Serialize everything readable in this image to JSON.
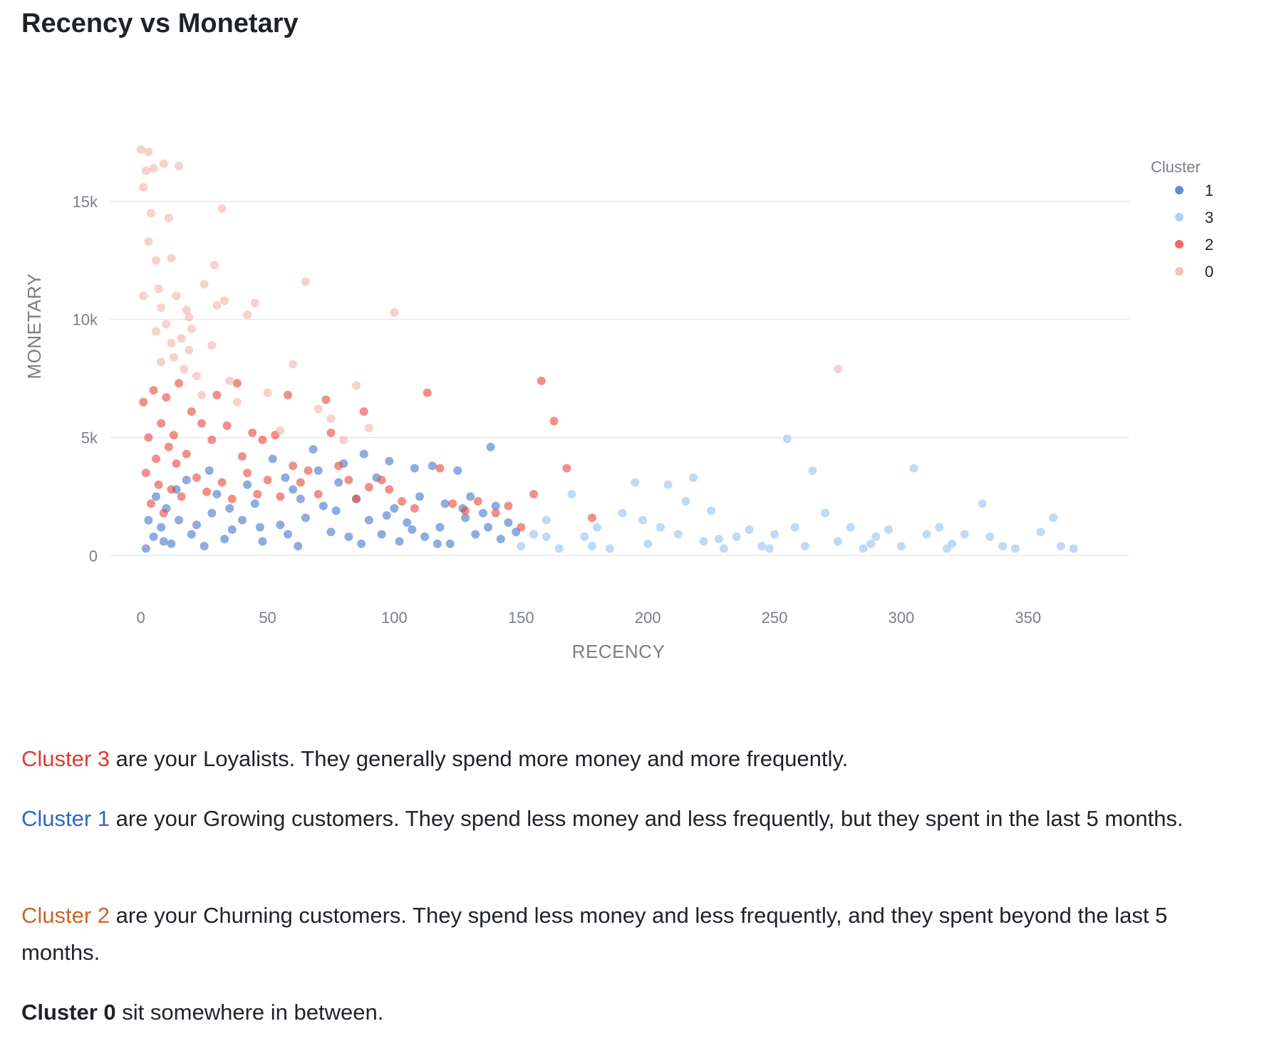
{
  "title": "Recency vs Monetary",
  "chart_data": {
    "type": "scatter",
    "xlabel": "RECENCY",
    "ylabel": "MONETARY",
    "xlim": [
      -12,
      390
    ],
    "ylim": [
      -1500,
      17500
    ],
    "x_ticks": [
      0,
      50,
      100,
      150,
      200,
      250,
      300,
      350
    ],
    "x_tick_labels": [
      "0",
      "50",
      "100",
      "150",
      "200",
      "250",
      "300",
      "350"
    ],
    "y_ticks": [
      0,
      5000,
      10000,
      15000
    ],
    "y_tick_labels": [
      "0",
      "5k",
      "10k",
      "15k"
    ],
    "grid": "horizontal",
    "legend_title": "Cluster",
    "legend_position": "top-right",
    "series": [
      {
        "name": "1",
        "color": "#2f67c4",
        "opacity": 0.55,
        "points": [
          [
            2,
            300
          ],
          [
            5,
            800
          ],
          [
            8,
            1200
          ],
          [
            10,
            2000
          ],
          [
            12,
            500
          ],
          [
            15,
            1500
          ],
          [
            18,
            3200
          ],
          [
            20,
            900
          ],
          [
            25,
            400
          ],
          [
            28,
            1800
          ],
          [
            30,
            2600
          ],
          [
            33,
            700
          ],
          [
            36,
            1100
          ],
          [
            40,
            1500
          ],
          [
            42,
            3000
          ],
          [
            45,
            2200
          ],
          [
            48,
            600
          ],
          [
            52,
            4100
          ],
          [
            55,
            1300
          ],
          [
            58,
            900
          ],
          [
            60,
            2800
          ],
          [
            62,
            400
          ],
          [
            65,
            1600
          ],
          [
            68,
            4500
          ],
          [
            70,
            3600
          ],
          [
            72,
            2100
          ],
          [
            75,
            1000
          ],
          [
            78,
            3100
          ],
          [
            80,
            3900
          ],
          [
            82,
            800
          ],
          [
            85,
            2400
          ],
          [
            88,
            4300
          ],
          [
            90,
            1500
          ],
          [
            93,
            3300
          ],
          [
            95,
            900
          ],
          [
            98,
            4000
          ],
          [
            100,
            2000
          ],
          [
            102,
            600
          ],
          [
            105,
            1400
          ],
          [
            108,
            3700
          ],
          [
            110,
            2500
          ],
          [
            112,
            800
          ],
          [
            115,
            3800
          ],
          [
            118,
            1200
          ],
          [
            120,
            2200
          ],
          [
            122,
            500
          ],
          [
            125,
            3600
          ],
          [
            128,
            1600
          ],
          [
            130,
            2500
          ],
          [
            132,
            900
          ],
          [
            135,
            1800
          ],
          [
            138,
            4600
          ],
          [
            140,
            2100
          ],
          [
            142,
            700
          ],
          [
            145,
            1400
          ],
          [
            148,
            1000
          ],
          [
            3,
            1500
          ],
          [
            6,
            2500
          ],
          [
            9,
            600
          ],
          [
            14,
            2800
          ],
          [
            22,
            1300
          ],
          [
            27,
            3600
          ],
          [
            35,
            2000
          ],
          [
            47,
            1200
          ],
          [
            57,
            3300
          ],
          [
            63,
            2400
          ],
          [
            77,
            1900
          ],
          [
            87,
            500
          ],
          [
            97,
            1700
          ],
          [
            107,
            1100
          ],
          [
            117,
            500
          ],
          [
            127,
            2000
          ],
          [
            137,
            1200
          ]
        ]
      },
      {
        "name": "3",
        "color": "#a9cdf4",
        "opacity": 0.75,
        "points": [
          [
            150,
            400
          ],
          [
            155,
            900
          ],
          [
            160,
            1500
          ],
          [
            165,
            300
          ],
          [
            170,
            2600
          ],
          [
            175,
            800
          ],
          [
            180,
            1200
          ],
          [
            185,
            300
          ],
          [
            190,
            1800
          ],
          [
            195,
            3100
          ],
          [
            200,
            500
          ],
          [
            205,
            1200
          ],
          [
            208,
            3000
          ],
          [
            212,
            900
          ],
          [
            215,
            2300
          ],
          [
            218,
            3300
          ],
          [
            222,
            600
          ],
          [
            225,
            1900
          ],
          [
            230,
            300
          ],
          [
            235,
            800
          ],
          [
            240,
            1100
          ],
          [
            245,
            400
          ],
          [
            250,
            900
          ],
          [
            255,
            4950
          ],
          [
            258,
            1200
          ],
          [
            262,
            400
          ],
          [
            265,
            3600
          ],
          [
            270,
            1800
          ],
          [
            275,
            600
          ],
          [
            280,
            1200
          ],
          [
            285,
            300
          ],
          [
            290,
            800
          ],
          [
            295,
            1100
          ],
          [
            300,
            400
          ],
          [
            305,
            3700
          ],
          [
            310,
            900
          ],
          [
            315,
            1200
          ],
          [
            320,
            500
          ],
          [
            325,
            900
          ],
          [
            332,
            2200
          ],
          [
            335,
            800
          ],
          [
            340,
            400
          ],
          [
            355,
            1000
          ],
          [
            360,
            1600
          ],
          [
            363,
            400
          ],
          [
            368,
            300
          ],
          [
            160,
            800
          ],
          [
            178,
            400
          ],
          [
            198,
            1500
          ],
          [
            228,
            700
          ],
          [
            248,
            300
          ],
          [
            288,
            500
          ],
          [
            318,
            300
          ],
          [
            345,
            300
          ]
        ]
      },
      {
        "name": "2",
        "color": "#e8463c",
        "opacity": 0.6,
        "points": [
          [
            1,
            6500
          ],
          [
            2,
            3500
          ],
          [
            3,
            5000
          ],
          [
            4,
            2200
          ],
          [
            5,
            7000
          ],
          [
            6,
            4100
          ],
          [
            7,
            3000
          ],
          [
            8,
            5600
          ],
          [
            9,
            1800
          ],
          [
            10,
            6700
          ],
          [
            11,
            4600
          ],
          [
            12,
            2800
          ],
          [
            13,
            5100
          ],
          [
            14,
            3900
          ],
          [
            15,
            7300
          ],
          [
            16,
            2500
          ],
          [
            18,
            4300
          ],
          [
            20,
            6100
          ],
          [
            22,
            3300
          ],
          [
            24,
            5600
          ],
          [
            26,
            2700
          ],
          [
            28,
            4900
          ],
          [
            30,
            6800
          ],
          [
            32,
            3100
          ],
          [
            34,
            5500
          ],
          [
            36,
            2400
          ],
          [
            38,
            7300
          ],
          [
            40,
            4200
          ],
          [
            42,
            3500
          ],
          [
            44,
            5200
          ],
          [
            46,
            2600
          ],
          [
            48,
            4900
          ],
          [
            50,
            3200
          ],
          [
            53,
            5100
          ],
          [
            55,
            2500
          ],
          [
            58,
            6800
          ],
          [
            60,
            3800
          ],
          [
            63,
            3100
          ],
          [
            66,
            3600
          ],
          [
            70,
            2600
          ],
          [
            73,
            6600
          ],
          [
            75,
            5200
          ],
          [
            78,
            3800
          ],
          [
            82,
            3200
          ],
          [
            85,
            2400
          ],
          [
            88,
            6100
          ],
          [
            90,
            2900
          ],
          [
            95,
            3200
          ],
          [
            98,
            2800
          ],
          [
            103,
            2300
          ],
          [
            108,
            2000
          ],
          [
            113,
            6900
          ],
          [
            118,
            3700
          ],
          [
            123,
            2200
          ],
          [
            128,
            1900
          ],
          [
            133,
            2300
          ],
          [
            140,
            1800
          ],
          [
            145,
            2100
          ],
          [
            150,
            1200
          ],
          [
            155,
            2600
          ],
          [
            158,
            7400
          ],
          [
            163,
            5700
          ],
          [
            168,
            3700
          ],
          [
            178,
            1600
          ]
        ]
      },
      {
        "name": "0",
        "color": "#f4b1ac",
        "opacity": 0.6,
        "points": [
          [
            0,
            17200
          ],
          [
            1,
            15600
          ],
          [
            2,
            16300
          ],
          [
            3,
            17100
          ],
          [
            4,
            14500
          ],
          [
            5,
            16400
          ],
          [
            6,
            12500
          ],
          [
            7,
            11300
          ],
          [
            8,
            10500
          ],
          [
            9,
            16600
          ],
          [
            10,
            9800
          ],
          [
            11,
            14300
          ],
          [
            12,
            12600
          ],
          [
            13,
            8400
          ],
          [
            14,
            11000
          ],
          [
            15,
            16500
          ],
          [
            16,
            9200
          ],
          [
            17,
            7900
          ],
          [
            18,
            10400
          ],
          [
            19,
            8700
          ],
          [
            20,
            9600
          ],
          [
            22,
            7600
          ],
          [
            24,
            6800
          ],
          [
            25,
            11500
          ],
          [
            28,
            8900
          ],
          [
            29,
            12300
          ],
          [
            30,
            10600
          ],
          [
            32,
            14700
          ],
          [
            33,
            10800
          ],
          [
            35,
            7400
          ],
          [
            38,
            6500
          ],
          [
            42,
            10200
          ],
          [
            45,
            10700
          ],
          [
            50,
            6900
          ],
          [
            55,
            5300
          ],
          [
            60,
            8100
          ],
          [
            65,
            11600
          ],
          [
            70,
            6200
          ],
          [
            75,
            5800
          ],
          [
            80,
            4900
          ],
          [
            85,
            7200
          ],
          [
            90,
            5400
          ],
          [
            100,
            10300
          ],
          [
            275,
            7900
          ],
          [
            1,
            11000
          ],
          [
            3,
            13300
          ],
          [
            6,
            9500
          ],
          [
            8,
            8200
          ],
          [
            12,
            9000
          ],
          [
            19,
            10100
          ]
        ]
      }
    ]
  },
  "paragraphs": [
    {
      "label": "Cluster 3",
      "color": "#e03a32",
      "text": " are your Loyalists. They generally spend more money and more frequently."
    },
    {
      "label": "Cluster 1",
      "color": "#2f67c4",
      "text": " are your Growing customers. They spend less money and less frequently, but they spent in the last 5 months."
    },
    {
      "label": "Cluster 2",
      "color": "#cc6627",
      "text": " are your Churning customers. They spend less money and less frequently, and they spent beyond the last 5 months."
    },
    {
      "label": "Cluster 0",
      "color": "#1f2328",
      "text": " sit somewhere in between."
    }
  ]
}
